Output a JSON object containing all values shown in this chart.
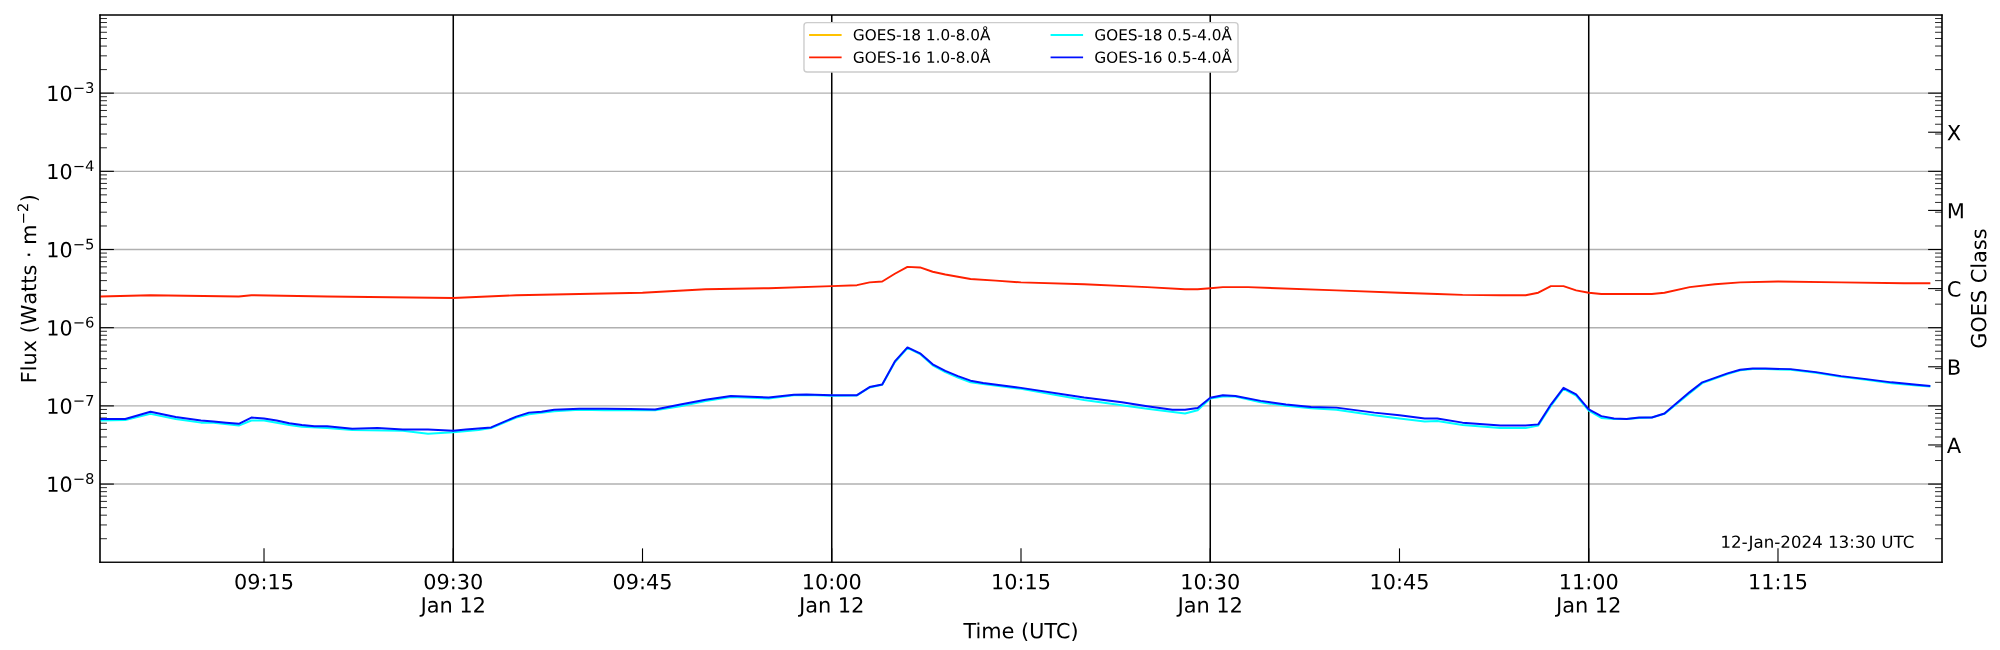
{
  "chart_data": {
    "type": "line",
    "xlabel": "Time (UTC)",
    "ylabel": "Flux (Watts · m$^{−2}$)",
    "y2label": "GOES Class",
    "xlim": [
      "2024-01-12T09:02",
      "2024-01-12T11:28"
    ],
    "xticks": [
      {
        "value": "2024-01-12T09:15",
        "label": "09:15"
      },
      {
        "value": "2024-01-12T09:30",
        "label": "09:30\nJan 12"
      },
      {
        "value": "2024-01-12T09:45",
        "label": "09:45"
      },
      {
        "value": "2024-01-12T10:00",
        "label": "10:00\nJan 12"
      },
      {
        "value": "2024-01-12T10:15",
        "label": "10:15"
      },
      {
        "value": "2024-01-12T10:30",
        "label": "10:30\nJan 12"
      },
      {
        "value": "2024-01-12T10:45",
        "label": "10:45"
      },
      {
        "value": "2024-01-12T11:00",
        "label": "11:00\nJan 12"
      },
      {
        "value": "2024-01-12T11:15",
        "label": "11:15"
      }
    ],
    "ylim": [
      1e-09,
      0.01
    ],
    "yticks": [
      {
        "value": 1e-08,
        "label": "10$^{−8}$"
      },
      {
        "value": 1e-07,
        "label": "10$^{−7}$"
      },
      {
        "value": 1e-06,
        "label": "10$^{−6}$"
      },
      {
        "value": 1e-05,
        "label": "10$^{−5}$"
      },
      {
        "value": 0.0001,
        "label": "10$^{−4}$"
      },
      {
        "value": 0.001,
        "label": "10$^{−3}$"
      }
    ],
    "y2_categories": [
      null,
      "X",
      "M",
      "C",
      "B",
      "A",
      null
    ],
    "log": "y",
    "grid": "y",
    "legend": "top",
    "marker": "none",
    "line_style": "solid",
    "ref_lines": [
      {
        "axis": "x",
        "value": "2024-01-12T09:30",
        "color": "#000000"
      },
      {
        "axis": "x",
        "value": "2024-01-12T10:00",
        "color": "#000000"
      },
      {
        "axis": "x",
        "value": "2024-01-12T10:30",
        "color": "#000000"
      },
      {
        "axis": "x",
        "value": "2024-01-12T11:00",
        "color": "#000000"
      }
    ],
    "annotations": [
      "12-Jan-2024 13:30 UTC"
    ],
    "series": [
      {
        "name": "GOES-18 1.0-8.0Å",
        "color": "#ffc200"
      },
      {
        "name": "GOES-16 1.0-8.0Å",
        "color": "#ff2000",
        "x": [
          "2024-01-12T09:02",
          "2024-01-12T09:06",
          "2024-01-12T09:13",
          "2024-01-12T09:14",
          "2024-01-12T09:20",
          "2024-01-12T09:30",
          "2024-01-12T09:35",
          "2024-01-12T09:45",
          "2024-01-12T09:50",
          "2024-01-12T09:55",
          "2024-01-12T10:00",
          "2024-01-12T10:02",
          "2024-01-12T10:03",
          "2024-01-12T10:04",
          "2024-01-12T10:05",
          "2024-01-12T10:06",
          "2024-01-12T10:07",
          "2024-01-12T10:08",
          "2024-01-12T10:09",
          "2024-01-12T10:11",
          "2024-01-12T10:13",
          "2024-01-12T10:15",
          "2024-01-12T10:20",
          "2024-01-12T10:25",
          "2024-01-12T10:28",
          "2024-01-12T10:29",
          "2024-01-12T10:30",
          "2024-01-12T10:31",
          "2024-01-12T10:33",
          "2024-01-12T10:40",
          "2024-01-12T10:45",
          "2024-01-12T10:48",
          "2024-01-12T10:50",
          "2024-01-12T10:53",
          "2024-01-12T10:55",
          "2024-01-12T10:56",
          "2024-01-12T10:57",
          "2024-01-12T10:58",
          "2024-01-12T10:59",
          "2024-01-12T11:00",
          "2024-01-12T11:01",
          "2024-01-12T11:05",
          "2024-01-12T11:06",
          "2024-01-12T11:08",
          "2024-01-12T11:10",
          "2024-01-12T11:12",
          "2024-01-12T11:15",
          "2024-01-12T11:20",
          "2024-01-12T11:25",
          "2024-01-12T11:27"
        ],
        "values": [
          2.5e-06,
          2.6e-06,
          2.5e-06,
          2.6e-06,
          2.5e-06,
          2.4e-06,
          2.6e-06,
          2.8e-06,
          3.1e-06,
          3.2e-06,
          3.4e-06,
          3.5e-06,
          3.8e-06,
          3.9e-06,
          4.9e-06,
          6e-06,
          5.9e-06,
          5.2e-06,
          4.8e-06,
          4.2e-06,
          4e-06,
          3.8e-06,
          3.6e-06,
          3.3e-06,
          3.1e-06,
          3.1e-06,
          3.2e-06,
          3.3e-06,
          3.3e-06,
          3e-06,
          2.8e-06,
          2.7e-06,
          2.63e-06,
          2.6e-06,
          2.6e-06,
          2.8e-06,
          3.4e-06,
          3.4e-06,
          3e-06,
          2.8e-06,
          2.7e-06,
          2.7e-06,
          2.8e-06,
          3.3e-06,
          3.6e-06,
          3.8e-06,
          3.9e-06,
          3.8e-06,
          3.7e-06,
          3.7e-06
        ]
      },
      {
        "name": "GOES-18 0.5-4.0Å",
        "color": "#00ffff",
        "x": [
          "2024-01-12T09:02",
          "2024-01-12T09:04",
          "2024-01-12T09:06",
          "2024-01-12T09:08",
          "2024-01-12T09:10",
          "2024-01-12T09:11",
          "2024-01-12T09:13",
          "2024-01-12T09:14",
          "2024-01-12T09:15",
          "2024-01-12T09:17",
          "2024-01-12T09:18",
          "2024-01-12T09:20",
          "2024-01-12T09:22",
          "2024-01-12T09:26",
          "2024-01-12T09:28",
          "2024-01-12T09:30",
          "2024-01-12T09:32",
          "2024-01-12T09:33",
          "2024-01-12T09:35",
          "2024-01-12T09:36",
          "2024-01-12T09:38",
          "2024-01-12T09:40",
          "2024-01-12T09:42",
          "2024-01-12T09:44",
          "2024-01-12T09:46",
          "2024-01-12T09:48",
          "2024-01-12T09:50",
          "2024-01-12T09:52",
          "2024-01-12T09:55",
          "2024-01-12T09:57",
          "2024-01-12T09:58",
          "2024-01-12T10:00",
          "2024-01-12T10:02",
          "2024-01-12T10:03",
          "2024-01-12T10:04",
          "2024-01-12T10:05",
          "2024-01-12T10:06",
          "2024-01-12T10:07",
          "2024-01-12T10:08",
          "2024-01-12T10:09",
          "2024-01-12T10:10",
          "2024-01-12T10:11",
          "2024-01-12T10:12",
          "2024-01-12T10:15",
          "2024-01-12T10:20",
          "2024-01-12T10:25",
          "2024-01-12T10:28",
          "2024-01-12T10:29",
          "2024-01-12T10:30",
          "2024-01-12T10:31",
          "2024-01-12T10:32",
          "2024-01-12T10:34",
          "2024-01-12T10:36",
          "2024-01-12T10:38",
          "2024-01-12T10:40",
          "2024-01-12T10:43",
          "2024-01-12T10:45",
          "2024-01-12T10:47",
          "2024-01-12T10:48",
          "2024-01-12T10:50",
          "2024-01-12T10:53",
          "2024-01-12T10:55",
          "2024-01-12T10:56",
          "2024-01-12T10:57",
          "2024-01-12T10:58",
          "2024-01-12T10:59",
          "2024-01-12T11:00",
          "2024-01-12T11:01",
          "2024-01-12T11:02",
          "2024-01-12T11:03",
          "2024-01-12T11:04",
          "2024-01-12T11:05",
          "2024-01-12T11:06",
          "2024-01-12T11:08",
          "2024-01-12T11:09",
          "2024-01-12T11:11",
          "2024-01-12T11:12",
          "2024-01-12T11:13",
          "2024-01-12T11:14",
          "2024-01-12T11:16",
          "2024-01-12T11:18",
          "2024-01-12T11:20",
          "2024-01-12T11:22",
          "2024-01-12T11:24",
          "2024-01-12T11:26",
          "2024-01-12T11:27"
        ],
        "values": [
          6.5e-08,
          6.6e-08,
          7.9e-08,
          6.8e-08,
          6.1e-08,
          6.1e-08,
          5.6e-08,
          6.5e-08,
          6.5e-08,
          5.7e-08,
          5.4e-08,
          5.2e-08,
          4.9e-08,
          4.8e-08,
          4.4e-08,
          4.6e-08,
          4.9e-08,
          5.2e-08,
          7.1e-08,
          7.8e-08,
          8.5e-08,
          8.9e-08,
          8.8e-08,
          8.8e-08,
          8.8e-08,
          9.9e-08,
          1.15e-07,
          1.3e-07,
          1.24e-07,
          1.37e-07,
          1.38e-07,
          1.35e-07,
          1.36e-07,
          1.72e-07,
          1.86e-07,
          3.6e-07,
          5.5e-07,
          4.6e-07,
          3.3e-07,
          2.7e-07,
          2.3e-07,
          2e-07,
          1.9e-07,
          1.65e-07,
          1.19e-07,
          9.2e-08,
          8e-08,
          8.8e-08,
          1.24e-07,
          1.32e-07,
          1.32e-07,
          1.11e-07,
          1e-07,
          9.3e-08,
          8.9e-08,
          7.6e-08,
          6.9e-08,
          6.3e-08,
          6.4e-08,
          5.7e-08,
          5.2e-08,
          5.2e-08,
          5.6e-08,
          1e-07,
          1.65e-07,
          1.35e-07,
          8.7e-08,
          7e-08,
          6.8e-08,
          6.8e-08,
          7e-08,
          7.1e-08,
          7.9e-08,
          1.45e-07,
          1.95e-07,
          2.55e-07,
          2.85e-07,
          2.95e-07,
          2.95e-07,
          2.9e-07,
          2.65e-07,
          2.35e-07,
          2.15e-07,
          1.95e-07,
          1.82e-07,
          1.77e-07
        ]
      },
      {
        "name": "GOES-16 0.5-4.0Å",
        "color": "#0010ff",
        "x": [
          "2024-01-12T09:02",
          "2024-01-12T09:04",
          "2024-01-12T09:06",
          "2024-01-12T09:08",
          "2024-01-12T09:10",
          "2024-01-12T09:11",
          "2024-01-12T09:12",
          "2024-01-12T09:13",
          "2024-01-12T09:14",
          "2024-01-12T09:15",
          "2024-01-12T09:16",
          "2024-01-12T09:17",
          "2024-01-12T09:18",
          "2024-01-12T09:19",
          "2024-01-12T09:20",
          "2024-01-12T09:22",
          "2024-01-12T09:24",
          "2024-01-12T09:26",
          "2024-01-12T09:28",
          "2024-01-12T09:30",
          "2024-01-12T09:31",
          "2024-01-12T09:33",
          "2024-01-12T09:35",
          "2024-01-12T09:36",
          "2024-01-12T09:37",
          "2024-01-12T09:38",
          "2024-01-12T09:40",
          "2024-01-12T09:42",
          "2024-01-12T09:44",
          "2024-01-12T09:46",
          "2024-01-12T09:48",
          "2024-01-12T09:50",
          "2024-01-12T09:52",
          "2024-01-12T09:55",
          "2024-01-12T09:57",
          "2024-01-12T09:58",
          "2024-01-12T10:00",
          "2024-01-12T10:02",
          "2024-01-12T10:03",
          "2024-01-12T10:04",
          "2024-01-12T10:05",
          "2024-01-12T10:06",
          "2024-01-12T10:07",
          "2024-01-12T10:08",
          "2024-01-12T10:09",
          "2024-01-12T10:10",
          "2024-01-12T10:11",
          "2024-01-12T10:12",
          "2024-01-12T10:15",
          "2024-01-12T10:20",
          "2024-01-12T10:23",
          "2024-01-12T10:25",
          "2024-01-12T10:27",
          "2024-01-12T10:28",
          "2024-01-12T10:29",
          "2024-01-12T10:30",
          "2024-01-12T10:31",
          "2024-01-12T10:32",
          "2024-01-12T10:34",
          "2024-01-12T10:36",
          "2024-01-12T10:38",
          "2024-01-12T10:40",
          "2024-01-12T10:43",
          "2024-01-12T10:45",
          "2024-01-12T10:47",
          "2024-01-12T10:48",
          "2024-01-12T10:50",
          "2024-01-12T10:53",
          "2024-01-12T10:55",
          "2024-01-12T10:56",
          "2024-01-12T10:57",
          "2024-01-12T10:58",
          "2024-01-12T10:59",
          "2024-01-12T11:00",
          "2024-01-12T11:01",
          "2024-01-12T11:02",
          "2024-01-12T11:03",
          "2024-01-12T11:04",
          "2024-01-12T11:05",
          "2024-01-12T11:06",
          "2024-01-12T11:08",
          "2024-01-12T11:09",
          "2024-01-12T11:11",
          "2024-01-12T11:12",
          "2024-01-12T11:13",
          "2024-01-12T11:14",
          "2024-01-12T11:16",
          "2024-01-12T11:18",
          "2024-01-12T11:20",
          "2024-01-12T11:22",
          "2024-01-12T11:24",
          "2024-01-12T11:26",
          "2024-01-12T11:27"
        ],
        "values": [
          6.8e-08,
          6.8e-08,
          8.4e-08,
          7.2e-08,
          6.5e-08,
          6.3e-08,
          6.1e-08,
          5.9e-08,
          7.1e-08,
          6.9e-08,
          6.5e-08,
          6e-08,
          5.7e-08,
          5.5e-08,
          5.5e-08,
          5.1e-08,
          5.2e-08,
          5e-08,
          5e-08,
          4.8e-08,
          5e-08,
          5.3e-08,
          7.3e-08,
          8.2e-08,
          8.4e-08,
          8.9e-08,
          9.2e-08,
          9.2e-08,
          9.1e-08,
          9e-08,
          1.04e-07,
          1.2e-07,
          1.34e-07,
          1.28e-07,
          1.39e-07,
          1.4e-07,
          1.37e-07,
          1.37e-07,
          1.74e-07,
          1.88e-07,
          3.7e-07,
          5.6e-07,
          4.7e-07,
          3.4e-07,
          2.8e-07,
          2.4e-07,
          2.1e-07,
          1.96e-07,
          1.7e-07,
          1.28e-07,
          1.11e-07,
          9.9e-08,
          8.9e-08,
          8.9e-08,
          9.4e-08,
          1.27e-07,
          1.37e-07,
          1.34e-07,
          1.16e-07,
          1.04e-07,
          9.7e-08,
          9.5e-08,
          8.2e-08,
          7.6e-08,
          6.9e-08,
          6.9e-08,
          6.1e-08,
          5.6e-08,
          5.6e-08,
          5.8e-08,
          1.04e-07,
          1.7e-07,
          1.4e-07,
          9e-08,
          7.4e-08,
          6.9e-08,
          6.8e-08,
          7.1e-08,
          7.1e-08,
          8e-08,
          1.5e-07,
          2e-07,
          2.6e-07,
          2.9e-07,
          3e-07,
          3e-07,
          2.95e-07,
          2.7e-07,
          2.4e-07,
          2.2e-07,
          2e-07,
          1.86e-07,
          1.8e-07
        ]
      }
    ]
  }
}
